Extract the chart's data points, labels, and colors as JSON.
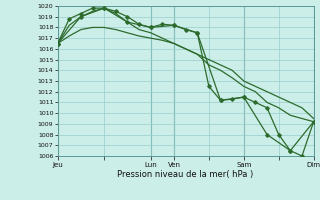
{
  "xlabel": "Pression niveau de la mer( hPa )",
  "bg_color": "#cceee8",
  "grid_color": "#99cccc",
  "line_color": "#2d6b2d",
  "vline_color": "#5a9999",
  "ylim": [
    1006,
    1020
  ],
  "ytick_min": 1006,
  "ytick_max": 1020,
  "xlim_min": 0,
  "xlim_max": 22,
  "xtick_labels": [
    "Jeu",
    "",
    "Lun",
    "Ven",
    "",
    "Sam",
    "",
    "Dim"
  ],
  "xtick_positions": [
    0,
    4,
    8,
    10,
    13,
    16,
    19,
    22
  ],
  "vline_positions": [
    0,
    8,
    10,
    16,
    22
  ],
  "line1_x": [
    0,
    1,
    2,
    3,
    4,
    5,
    6,
    7,
    8,
    9,
    10,
    11,
    12,
    13,
    14,
    15,
    16,
    17,
    18,
    19,
    20,
    21,
    22
  ],
  "line1_y": [
    1016.5,
    1018.8,
    1019.3,
    1019.8,
    1019.8,
    1019.5,
    1019.0,
    1018.3,
    1018.0,
    1018.3,
    1018.2,
    1017.8,
    1017.5,
    1012.5,
    1011.2,
    1011.3,
    1011.5,
    1011.0,
    1010.5,
    1008.0,
    1006.5,
    1006.0,
    1009.2
  ],
  "line2_x": [
    0,
    1,
    2,
    3,
    4,
    5,
    6,
    7,
    8,
    9,
    10,
    11,
    12,
    13,
    14,
    15,
    16,
    17,
    18,
    19,
    20,
    21,
    22
  ],
  "line2_y": [
    1016.5,
    1017.2,
    1017.8,
    1018.0,
    1018.0,
    1017.8,
    1017.5,
    1017.2,
    1017.0,
    1016.8,
    1016.5,
    1016.0,
    1015.5,
    1015.0,
    1014.5,
    1014.0,
    1013.0,
    1012.5,
    1012.0,
    1011.5,
    1011.0,
    1010.5,
    1009.5
  ],
  "line3_x": [
    0,
    1,
    2,
    3,
    4,
    5,
    6,
    7,
    8,
    9,
    10,
    11,
    12,
    13,
    14,
    15,
    16,
    17,
    18,
    19,
    20,
    21,
    22
  ],
  "line3_y": [
    1016.5,
    1018.2,
    1019.0,
    1019.5,
    1019.8,
    1019.3,
    1018.5,
    1017.8,
    1017.5,
    1017.0,
    1016.5,
    1016.0,
    1015.5,
    1014.5,
    1014.0,
    1013.3,
    1012.5,
    1012.0,
    1011.0,
    1010.5,
    1009.8,
    1009.5,
    1009.2
  ],
  "line4_x": [
    0,
    2,
    4,
    6,
    8,
    10,
    12,
    14,
    16,
    18,
    20,
    22
  ],
  "line4_y": [
    1016.5,
    1019.0,
    1019.8,
    1018.5,
    1018.0,
    1018.2,
    1017.5,
    1011.2,
    1011.5,
    1008.0,
    1006.5,
    1009.2
  ]
}
